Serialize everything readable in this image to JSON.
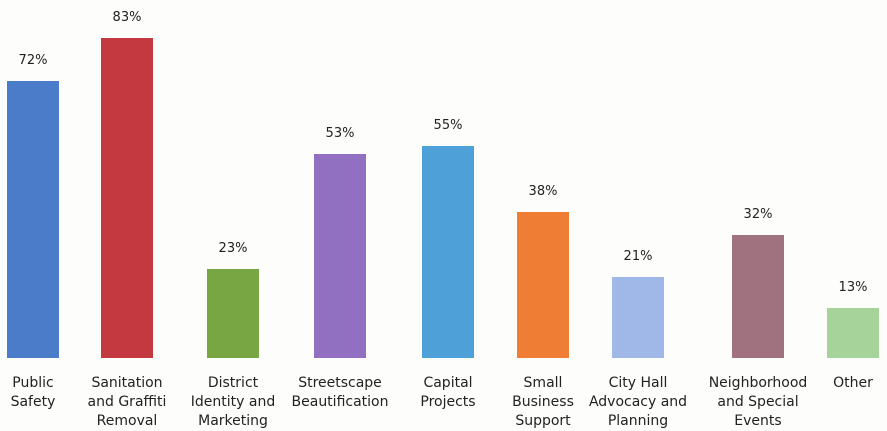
{
  "chart_data": {
    "type": "bar",
    "categories": [
      "Public Safety",
      "Sanitation and Graffiti Removal",
      "District Identity and Marketing",
      "Streetscape Beautification",
      "Capital Projects",
      "Small Business Support",
      "City Hall Advocacy and Planning",
      "Neighborhood and Special Events",
      "Other"
    ],
    "values": [
      72,
      83,
      23,
      53,
      55,
      38,
      21,
      32,
      13
    ],
    "value_labels": [
      "72%",
      "83%",
      "23%",
      "53%",
      "55%",
      "38%",
      "21%",
      "32%",
      "13%"
    ],
    "colors": [
      "#4a7cc9",
      "#c4383f",
      "#77a642",
      "#9170c1",
      "#4ea1d8",
      "#ef7d33",
      "#9fb8e8",
      "#a0717f",
      "#a6d39a"
    ]
  }
}
